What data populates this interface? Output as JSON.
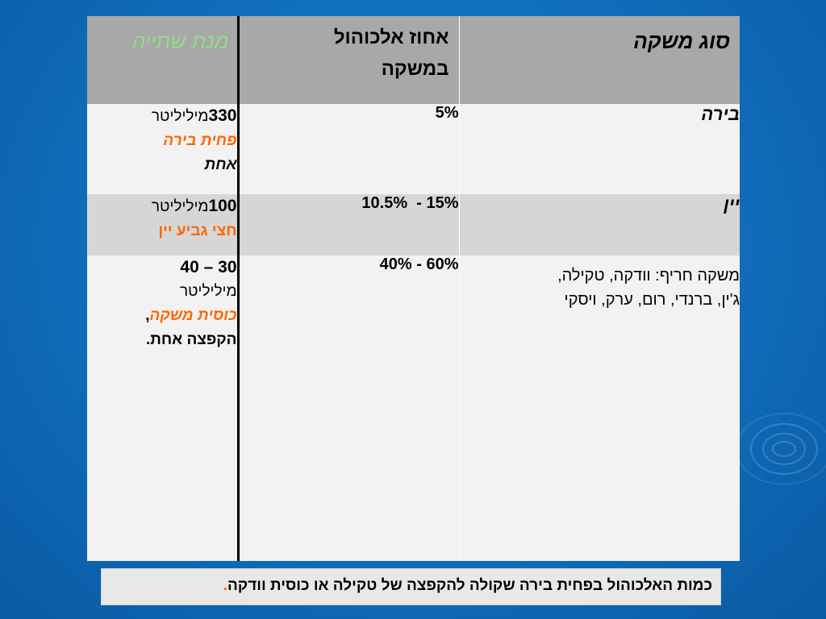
{
  "table": {
    "headers": {
      "drink_type": "סוג משקה",
      "alcohol_pct_line1": "אחוז אלכוהול",
      "alcohol_pct_line2": "במשקה",
      "serving": "מנת שתייה"
    },
    "rows": [
      {
        "type": "בירה",
        "pct": "5%",
        "serving_amount": "330",
        "serving_unit": "מיליליטר",
        "serving_highlight": "פחית בירה",
        "serving_rest": "אחת"
      },
      {
        "type": "יין",
        "pct": "10.5%  - 15%",
        "serving_amount": "100",
        "serving_unit": "מיליליטר",
        "serving_highlight": "חצי גביע יין"
      },
      {
        "type_line1": "משקה חריף: וודקה, טקילה,",
        "type_line2": "ג'ין, ברנדי, רום, ערק, ויסקי",
        "pct": "40% - 60%",
        "serving_amount": "30 – 40",
        "serving_unit": "מיליליטר",
        "serving_highlight": "כוסית משקה",
        "serving_highlight_suffix": ",",
        "serving_rest": "הקפצה אחת."
      }
    ]
  },
  "footer": {
    "note": "כמות האלכוהול בפחית בירה שקולה  להקפצה של טקילה או כוסית וודקה",
    "period": "."
  },
  "colors": {
    "background": "#1172c0",
    "header_bg": "#a8a8a8",
    "serving_header": "#8fde8a",
    "highlight": "#ff6600"
  }
}
